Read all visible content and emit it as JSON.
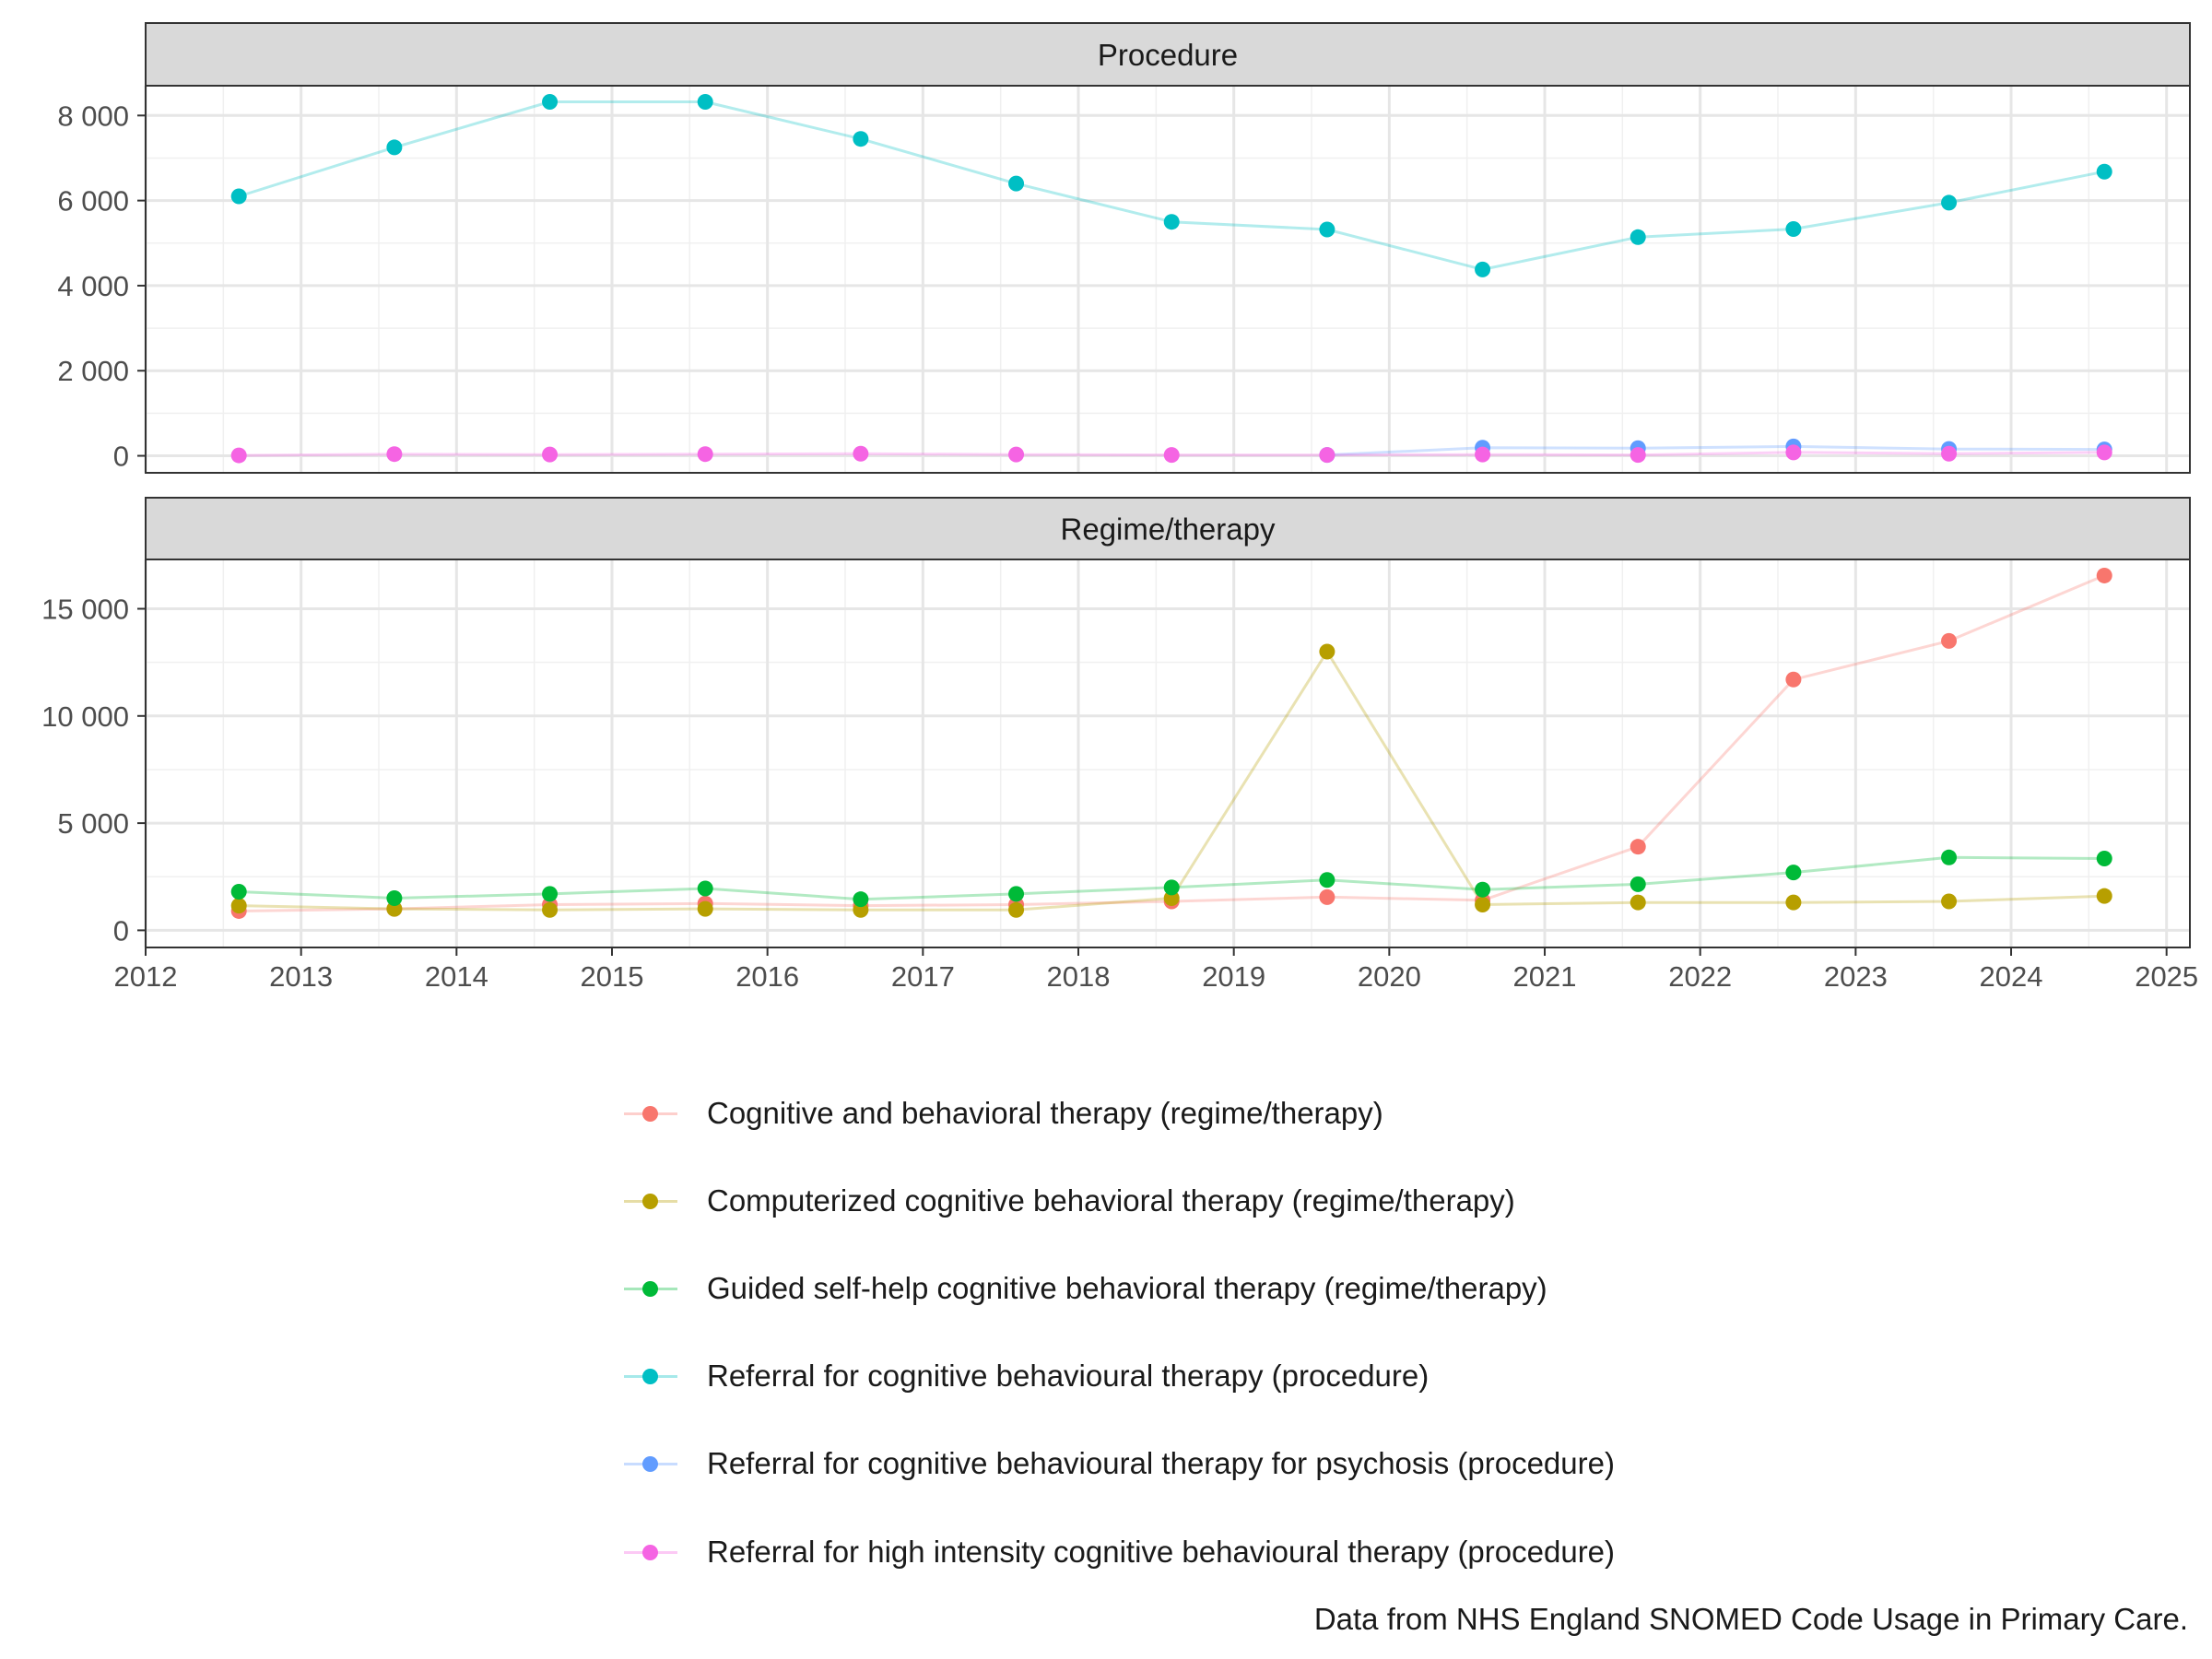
{
  "caption": "Data from NHS England SNOMED Code Usage in Primary Care.",
  "chart_data": {
    "type": "line",
    "facets": [
      {
        "title": "Procedure",
        "ylim": [
          -400,
          8700
        ],
        "yticks": [
          0,
          2000,
          4000,
          6000,
          8000
        ],
        "ytick_labels": [
          "0",
          "2 000",
          "4 000",
          "6 000",
          "8 000"
        ],
        "series": [
          {
            "name": "Referral for cognitive behavioural therapy (procedure)",
            "color": "#00BFC4",
            "x": [
              2012.6,
              2013.6,
              2014.6,
              2015.6,
              2016.6,
              2017.6,
              2018.6,
              2019.6,
              2020.6,
              2021.6,
              2022.6,
              2023.6,
              2024.6
            ],
            "values": [
              6100,
              7250,
              8320,
              8320,
              7450,
              6400,
              5500,
              5320,
              4380,
              5140,
              5330,
              5950,
              6680
            ]
          },
          {
            "name": "Referral for cognitive behavioural therapy for psychosis (procedure)",
            "color": "#619CFF",
            "x": [
              2019.6,
              2020.6,
              2021.6,
              2022.6,
              2023.6,
              2024.6
            ],
            "values": [
              20,
              190,
              180,
              220,
              160,
              150
            ]
          },
          {
            "name": "Referral for high intensity cognitive behavioural therapy (procedure)",
            "color": "#F564E3",
            "x": [
              2012.6,
              2013.6,
              2014.6,
              2015.6,
              2016.6,
              2017.6,
              2018.6,
              2019.6,
              2020.6,
              2021.6,
              2022.6,
              2023.6,
              2024.6
            ],
            "values": [
              10,
              40,
              30,
              40,
              50,
              30,
              20,
              20,
              30,
              20,
              80,
              50,
              80
            ]
          }
        ]
      },
      {
        "title": "Regime/therapy",
        "ylim": [
          -800,
          17300
        ],
        "yticks": [
          0,
          5000,
          10000,
          15000
        ],
        "ytick_labels": [
          "0",
          "5 000",
          "10 000",
          "15 000"
        ],
        "series": [
          {
            "name": "Cognitive and behavioral therapy (regime/therapy)",
            "color": "#F8766D",
            "x": [
              2012.6,
              2013.6,
              2014.6,
              2015.6,
              2016.6,
              2017.6,
              2018.6,
              2019.6,
              2020.6,
              2021.6,
              2022.6,
              2023.6,
              2024.6
            ],
            "values": [
              900,
              1000,
              1200,
              1250,
              1150,
              1200,
              1350,
              1550,
              1400,
              3900,
              11700,
              13500,
              16550
            ]
          },
          {
            "name": "Computerized cognitive behavioral therapy (regime/therapy)",
            "color": "#B79F00",
            "x": [
              2012.6,
              2013.6,
              2014.6,
              2015.6,
              2016.6,
              2017.6,
              2018.6,
              2019.6,
              2020.6,
              2021.6,
              2022.6,
              2023.6,
              2024.6
            ],
            "values": [
              1150,
              1000,
              950,
              1000,
              950,
              950,
              1500,
              13000,
              1200,
              1300,
              1300,
              1350,
              1600
            ]
          },
          {
            "name": "Guided self-help cognitive behavioral therapy (regime/therapy)",
            "color": "#00BA38",
            "x": [
              2012.6,
              2013.6,
              2014.6,
              2015.6,
              2016.6,
              2017.6,
              2018.6,
              2019.6,
              2020.6,
              2021.6,
              2022.6,
              2023.6,
              2024.6
            ],
            "values": [
              1800,
              1500,
              1700,
              1950,
              1450,
              1700,
              2000,
              2350,
              1900,
              2150,
              2700,
              3400,
              3350
            ]
          }
        ]
      }
    ],
    "xlim": [
      2012,
      2025.15
    ],
    "xticks": [
      2012,
      2013,
      2014,
      2015,
      2016,
      2017,
      2018,
      2019,
      2020,
      2021,
      2022,
      2023,
      2024,
      2025
    ],
    "xtick_labels": [
      "2012",
      "2013",
      "2014",
      "2015",
      "2016",
      "2017",
      "2018",
      "2019",
      "2020",
      "2021",
      "2022",
      "2023",
      "2024",
      "2025"
    ],
    "grid": true,
    "legend_position": "bottom",
    "legend": [
      {
        "label": "Cognitive and behavioral therapy (regime/therapy)",
        "color": "#F8766D"
      },
      {
        "label": "Computerized cognitive behavioral therapy (regime/therapy)",
        "color": "#B79F00"
      },
      {
        "label": "Guided self-help cognitive behavioral therapy (regime/therapy)",
        "color": "#00BA38"
      },
      {
        "label": "Referral for cognitive behavioural therapy (procedure)",
        "color": "#00BFC4"
      },
      {
        "label": "Referral for cognitive behavioural therapy for psychosis (procedure)",
        "color": "#619CFF"
      },
      {
        "label": "Referral for high intensity cognitive behavioural therapy (procedure)",
        "color": "#F564E3"
      }
    ]
  }
}
